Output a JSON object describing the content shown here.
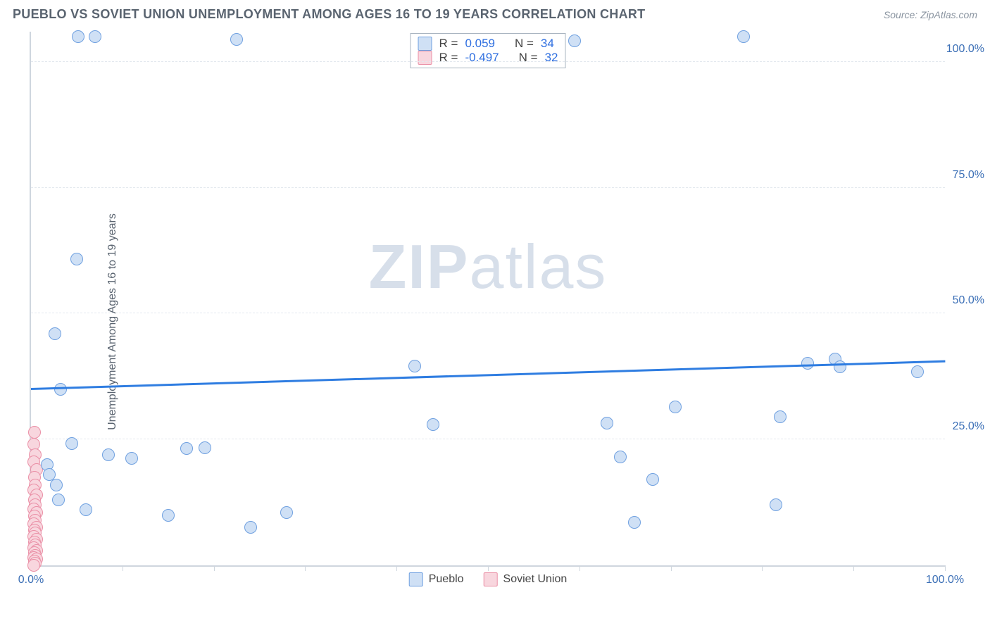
{
  "header": {
    "title": "PUEBLO VS SOVIET UNION UNEMPLOYMENT AMONG AGES 16 TO 19 YEARS CORRELATION CHART",
    "source_prefix": "Source: ",
    "source_name": "ZipAtlas.com"
  },
  "watermark": {
    "part1": "ZIP",
    "part2": "atlas"
  },
  "chart": {
    "type": "scatter",
    "background_color": "#ffffff",
    "grid_color": "#e3e8ee",
    "axis_color": "#cfd6de",
    "tick_color": "#3b6fb6",
    "y_axis_label": "Unemployment Among Ages 16 to 19 years",
    "label_fontsize": 16,
    "title_fontsize": 18,
    "xlim": [
      0,
      100
    ],
    "ylim": [
      0,
      106
    ],
    "x_ticks": [
      0,
      10,
      20,
      30,
      40,
      50,
      60,
      70,
      80,
      90,
      100
    ],
    "x_tick_labels": {
      "0": "0.0%",
      "100": "100.0%"
    },
    "y_ticks": [
      25,
      50,
      75,
      100
    ],
    "y_tick_labels": {
      "25": "25.0%",
      "50": "50.0%",
      "75": "75.0%",
      "100": "100.0%"
    },
    "marker_radius": 9,
    "marker_stroke_width": 1.5,
    "series": {
      "pueblo": {
        "label": "Pueblo",
        "fill": "#cfe0f5",
        "stroke": "#6fa0e0",
        "trend_color": "#2f7de1",
        "trend": {
          "y_at_x0": 34.8,
          "y_at_x100": 40.3,
          "width": 3
        },
        "R": "0.059",
        "N": "34",
        "points": [
          [
            5.2,
            105.0
          ],
          [
            7.0,
            105.0
          ],
          [
            22.5,
            104.5
          ],
          [
            59.5,
            104.2
          ],
          [
            78.0,
            105.0
          ],
          [
            2.6,
            46.0
          ],
          [
            5.0,
            60.8
          ],
          [
            3.2,
            35.0
          ],
          [
            4.5,
            24.2
          ],
          [
            8.5,
            22.0
          ],
          [
            11.0,
            21.2
          ],
          [
            17.0,
            23.2
          ],
          [
            19.0,
            23.4
          ],
          [
            1.8,
            20.0
          ],
          [
            2.0,
            18.0
          ],
          [
            2.8,
            16.0
          ],
          [
            3.0,
            13.0
          ],
          [
            6.0,
            11.0
          ],
          [
            15.0,
            10.0
          ],
          [
            24.0,
            7.5
          ],
          [
            28.0,
            10.5
          ],
          [
            42.0,
            39.6
          ],
          [
            44.0,
            28.0
          ],
          [
            63.0,
            28.2
          ],
          [
            64.5,
            21.5
          ],
          [
            66.0,
            8.5
          ],
          [
            70.5,
            31.5
          ],
          [
            68.0,
            17.0
          ],
          [
            82.0,
            29.5
          ],
          [
            81.5,
            12.0
          ],
          [
            85.0,
            40.2
          ],
          [
            88.0,
            41.0
          ],
          [
            88.5,
            39.5
          ],
          [
            97.0,
            38.5
          ]
        ]
      },
      "soviet_union": {
        "label": "Soviet Union",
        "fill": "#f8d6de",
        "stroke": "#ea8fa6",
        "R": "-0.497",
        "N": "32",
        "points": [
          [
            0.4,
            26.5
          ],
          [
            0.3,
            24.0
          ],
          [
            0.5,
            22.0
          ],
          [
            0.3,
            20.5
          ],
          [
            0.6,
            19.0
          ],
          [
            0.4,
            17.5
          ],
          [
            0.5,
            16.0
          ],
          [
            0.3,
            15.0
          ],
          [
            0.6,
            14.0
          ],
          [
            0.4,
            13.0
          ],
          [
            0.5,
            12.0
          ],
          [
            0.3,
            11.2
          ],
          [
            0.6,
            10.5
          ],
          [
            0.4,
            9.8
          ],
          [
            0.5,
            9.0
          ],
          [
            0.3,
            8.3
          ],
          [
            0.6,
            7.6
          ],
          [
            0.4,
            7.0
          ],
          [
            0.5,
            6.4
          ],
          [
            0.3,
            5.8
          ],
          [
            0.6,
            5.2
          ],
          [
            0.4,
            4.6
          ],
          [
            0.5,
            4.0
          ],
          [
            0.3,
            3.5
          ],
          [
            0.6,
            3.0
          ],
          [
            0.4,
            2.5
          ],
          [
            0.5,
            2.0
          ],
          [
            0.3,
            1.6
          ],
          [
            0.6,
            1.2
          ],
          [
            0.4,
            0.8
          ],
          [
            0.5,
            0.4
          ],
          [
            0.3,
            0.0
          ]
        ]
      }
    },
    "legend_top": {
      "r_label": "R =",
      "n_label": "N ="
    },
    "legend_bottom_order": [
      "pueblo",
      "soviet_union"
    ]
  }
}
